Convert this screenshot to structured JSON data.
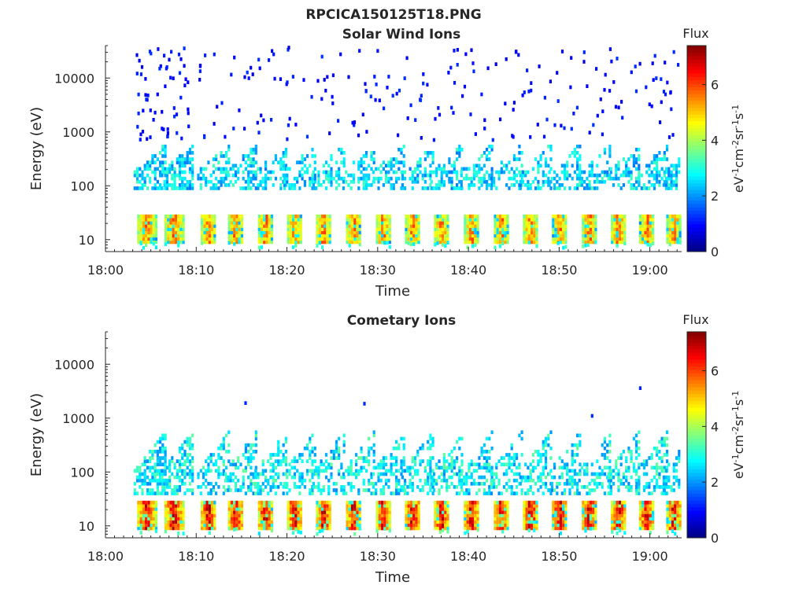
{
  "figure": {
    "title": "RPCICA150125T18.PNG"
  },
  "colorbar": {
    "label": "Flux",
    "units_base": "eV",
    "units_parts": [
      {
        "t": "eV",
        "sup": false
      },
      {
        "t": "-1",
        "sup": true
      },
      {
        "t": "cm",
        "sup": false
      },
      {
        "t": "-2",
        "sup": true
      },
      {
        "t": "sr",
        "sup": false
      },
      {
        "t": "-1",
        "sup": true
      },
      {
        "t": "s",
        "sup": false
      },
      {
        "t": "-1",
        "sup": true
      }
    ],
    "range": [
      0,
      7.4
    ],
    "ticks": [
      0,
      2,
      4,
      6
    ],
    "colormap": "jet"
  },
  "chart_data": [
    {
      "type": "heatmap",
      "title": "Solar Wind Ions",
      "xlabel": "Time",
      "ylabel": "Energy (eV)",
      "xlim_minutes_after_1800": [
        0,
        63.5
      ],
      "ylim_eV": [
        6,
        40000
      ],
      "yscale": "log",
      "x_tick_labels": [
        "18:00",
        "18:10",
        "18:20",
        "18:30",
        "18:40",
        "18:50",
        "19:00"
      ],
      "x_tick_minutes": [
        0,
        10,
        20,
        30,
        40,
        50,
        60
      ],
      "y_tick_labels": [
        "10",
        "100",
        "1000",
        "10000"
      ],
      "y_tick_values": [
        10,
        100,
        1000,
        10000
      ],
      "sweep_start_minutes": [
        3.5,
        6.5,
        10.5,
        13.5,
        16.8,
        20.0,
        23.2,
        26.5,
        29.8,
        33.0,
        36.2,
        39.5,
        42.8,
        46.0,
        49.2,
        52.5,
        55.7,
        58.8,
        61.8
      ],
      "features": {
        "low_energy_band_eV": [
          9,
          28
        ],
        "low_energy_peak_flux": 5.6,
        "mid_energy_band_eV": [
          90,
          600
        ],
        "mid_energy_peak_flux": 3.0,
        "high_energy_sparse_eV": [
          700,
          40000
        ],
        "high_energy_flux": 1.0
      }
    },
    {
      "type": "heatmap",
      "title": "Cometary Ions",
      "xlabel": "Time",
      "ylabel": "Energy (eV)",
      "xlim_minutes_after_1800": [
        0,
        63.5
      ],
      "ylim_eV": [
        6,
        40000
      ],
      "yscale": "log",
      "x_tick_labels": [
        "18:00",
        "18:10",
        "18:20",
        "18:30",
        "18:40",
        "18:50",
        "19:00"
      ],
      "x_tick_minutes": [
        0,
        10,
        20,
        30,
        40,
        50,
        60
      ],
      "y_tick_labels": [
        "10",
        "100",
        "1000",
        "10000"
      ],
      "y_tick_values": [
        10,
        100,
        1000,
        10000
      ],
      "sweep_start_minutes": [
        3.5,
        6.5,
        10.5,
        13.5,
        16.8,
        20.0,
        23.2,
        26.5,
        29.8,
        33.0,
        36.2,
        39.5,
        42.8,
        46.0,
        49.2,
        52.5,
        55.7,
        58.8,
        61.8
      ],
      "features": {
        "low_energy_band_eV": [
          9,
          28
        ],
        "low_energy_peak_flux": 6.6,
        "mid_energy_band_eV": [
          40,
          600
        ],
        "mid_energy_peak_flux": 3.2,
        "isolated_points": [
          [
            15.3,
            1900
          ],
          [
            28.4,
            1850
          ],
          [
            53.5,
            1100
          ],
          [
            58.8,
            3600
          ]
        ]
      }
    }
  ]
}
